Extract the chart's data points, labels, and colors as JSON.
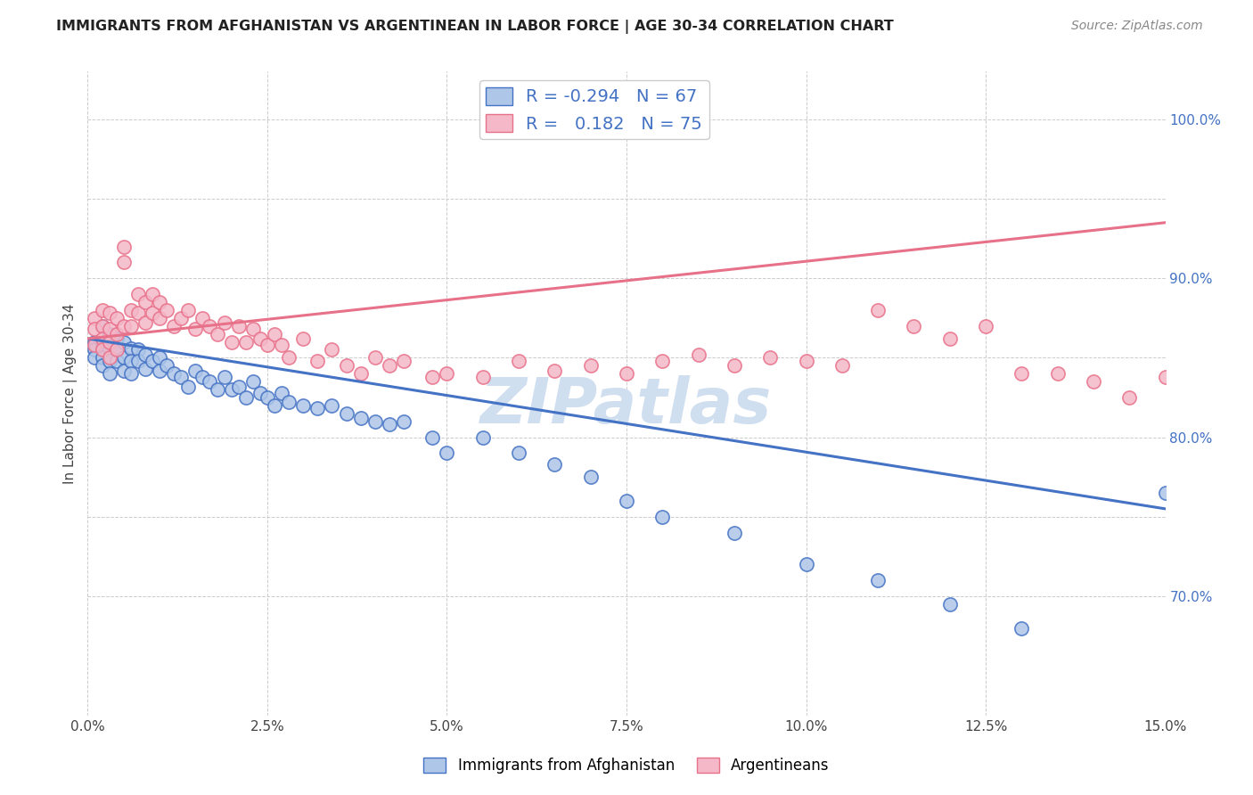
{
  "title": "IMMIGRANTS FROM AFGHANISTAN VS ARGENTINEAN IN LABOR FORCE | AGE 30-34 CORRELATION CHART",
  "source": "Source: ZipAtlas.com",
  "ylabel": "In Labor Force | Age 30-34",
  "x_range": [
    0.0,
    0.15
  ],
  "y_range": [
    0.625,
    1.03
  ],
  "r_afghanistan": -0.294,
  "n_afghanistan": 67,
  "r_argentinean": 0.182,
  "n_argentinean": 75,
  "color_afghanistan": "#aec6e8",
  "color_argentinean": "#f4b8c8",
  "color_afghanistan_line": "#4472c4",
  "color_argentinean_line": "#e8718a",
  "watermark_color": "#d0dff0",
  "afghanistan_x": [
    0.001,
    0.001,
    0.001,
    0.002,
    0.002,
    0.002,
    0.002,
    0.003,
    0.003,
    0.003,
    0.003,
    0.004,
    0.004,
    0.004,
    0.005,
    0.005,
    0.005,
    0.006,
    0.006,
    0.006,
    0.007,
    0.007,
    0.008,
    0.008,
    0.009,
    0.01,
    0.01,
    0.011,
    0.012,
    0.013,
    0.014,
    0.015,
    0.016,
    0.017,
    0.018,
    0.019,
    0.02,
    0.021,
    0.022,
    0.023,
    0.024,
    0.025,
    0.026,
    0.027,
    0.028,
    0.03,
    0.032,
    0.034,
    0.036,
    0.038,
    0.04,
    0.042,
    0.044,
    0.048,
    0.05,
    0.055,
    0.06,
    0.065,
    0.07,
    0.075,
    0.08,
    0.09,
    0.1,
    0.11,
    0.12,
    0.13,
    0.15
  ],
  "afghanistan_y": [
    0.86,
    0.855,
    0.85,
    0.87,
    0.858,
    0.85,
    0.845,
    0.865,
    0.855,
    0.848,
    0.84,
    0.862,
    0.855,
    0.848,
    0.86,
    0.85,
    0.842,
    0.856,
    0.848,
    0.84,
    0.855,
    0.848,
    0.852,
    0.843,
    0.848,
    0.85,
    0.842,
    0.845,
    0.84,
    0.838,
    0.832,
    0.842,
    0.838,
    0.835,
    0.83,
    0.838,
    0.83,
    0.832,
    0.825,
    0.835,
    0.828,
    0.825,
    0.82,
    0.828,
    0.822,
    0.82,
    0.818,
    0.82,
    0.815,
    0.812,
    0.81,
    0.808,
    0.81,
    0.8,
    0.79,
    0.8,
    0.79,
    0.783,
    0.775,
    0.76,
    0.75,
    0.74,
    0.72,
    0.71,
    0.695,
    0.68,
    0.765
  ],
  "argentinean_x": [
    0.001,
    0.001,
    0.001,
    0.002,
    0.002,
    0.002,
    0.002,
    0.003,
    0.003,
    0.003,
    0.003,
    0.004,
    0.004,
    0.004,
    0.005,
    0.005,
    0.005,
    0.006,
    0.006,
    0.007,
    0.007,
    0.008,
    0.008,
    0.009,
    0.009,
    0.01,
    0.01,
    0.011,
    0.012,
    0.013,
    0.014,
    0.015,
    0.016,
    0.017,
    0.018,
    0.019,
    0.02,
    0.021,
    0.022,
    0.023,
    0.024,
    0.025,
    0.026,
    0.027,
    0.028,
    0.03,
    0.032,
    0.034,
    0.036,
    0.038,
    0.04,
    0.042,
    0.044,
    0.048,
    0.05,
    0.055,
    0.06,
    0.065,
    0.07,
    0.075,
    0.08,
    0.085,
    0.09,
    0.095,
    0.1,
    0.105,
    0.11,
    0.115,
    0.12,
    0.125,
    0.13,
    0.135,
    0.14,
    0.145,
    0.15
  ],
  "argentinean_y": [
    0.875,
    0.868,
    0.858,
    0.88,
    0.87,
    0.862,
    0.855,
    0.878,
    0.868,
    0.86,
    0.85,
    0.875,
    0.865,
    0.855,
    0.92,
    0.91,
    0.87,
    0.88,
    0.87,
    0.89,
    0.878,
    0.885,
    0.872,
    0.89,
    0.878,
    0.885,
    0.875,
    0.88,
    0.87,
    0.875,
    0.88,
    0.868,
    0.875,
    0.87,
    0.865,
    0.872,
    0.86,
    0.87,
    0.86,
    0.868,
    0.862,
    0.858,
    0.865,
    0.858,
    0.85,
    0.862,
    0.848,
    0.855,
    0.845,
    0.84,
    0.85,
    0.845,
    0.848,
    0.838,
    0.84,
    0.838,
    0.848,
    0.842,
    0.845,
    0.84,
    0.848,
    0.852,
    0.845,
    0.85,
    0.848,
    0.845,
    0.88,
    0.87,
    0.862,
    0.87,
    0.84,
    0.84,
    0.835,
    0.825,
    0.838
  ],
  "x_ticks": [
    0.0,
    0.025,
    0.05,
    0.075,
    0.1,
    0.125,
    0.15
  ],
  "y_ticks_right": [
    0.7,
    0.8,
    0.9,
    1.0
  ],
  "y_ticks_right_labels": [
    "70.0%",
    "80.0%",
    "90.0%",
    "100.0%"
  ],
  "y_grid_ticks": [
    0.7,
    0.75,
    0.8,
    0.85,
    0.9,
    0.95,
    1.0
  ],
  "legend_label_afg": "Immigrants from Afghanistan",
  "legend_label_arg": "Argentineans"
}
